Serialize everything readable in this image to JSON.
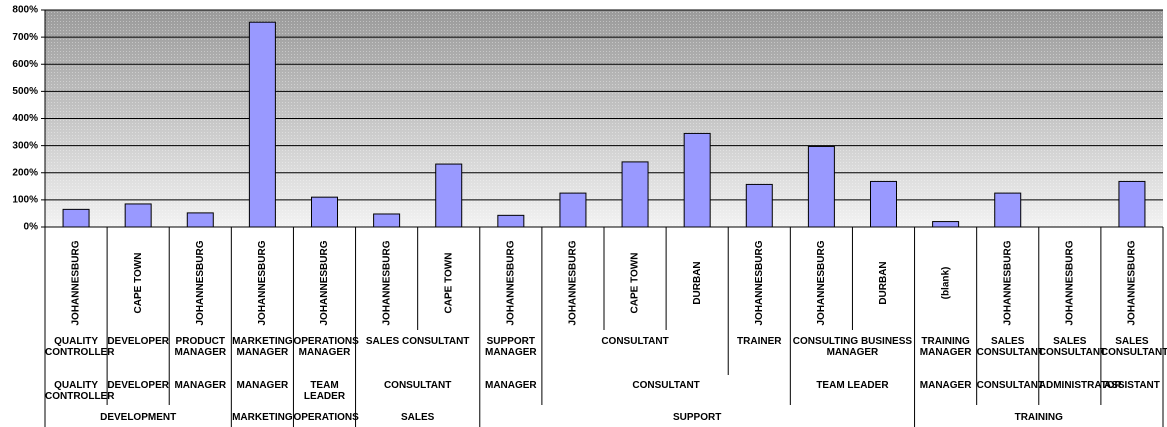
{
  "chart_data": {
    "type": "bar",
    "categories": [
      "JOHANNESBURG",
      "CAPE TOWN",
      "JOHANNESBURG",
      "JOHANNESBURG",
      "JOHANNESBURG",
      "JOHANNESBURG",
      "CAPE TOWN",
      "JOHANNESBURG",
      "JOHANNESBURG",
      "CAPE TOWN",
      "DURBAN",
      "JOHANNESBURG",
      "JOHANNESBURG",
      "DURBAN",
      "(blank)",
      "JOHANNESBURG",
      "JOHANNESBURG",
      "JOHANNESBURG"
    ],
    "category_levels": [
      [
        "QUALITY CONTROLLER",
        "DEVELOPER",
        "PRODUCT MANAGER",
        "MARKETING MANAGER",
        "OPERATIONS MANAGER",
        "SALES CONSULTANT",
        null,
        "SUPPORT MANAGER",
        "CONSULTANT",
        null,
        null,
        "TRAINER",
        "CONSULTING BUSINESS MANAGER",
        null,
        "TRAINING MANAGER",
        "SALES CONSULTANT",
        "SALES CONSULTANT",
        "SALES CONSULTANT"
      ],
      [
        "QUALITY CONTROLLER",
        "DEVELOPER",
        "MANAGER",
        "MANAGER",
        "TEAM LEADER",
        "CONSULTANT",
        null,
        "MANAGER",
        "CONSULTANT",
        null,
        null,
        null,
        "TEAM LEADER",
        null,
        "MANAGER",
        "CONSULTANT",
        "ADMINISTRATOR",
        "ASSISTANT"
      ],
      [
        "DEVELOPMENT",
        null,
        null,
        "MARKETING",
        "OPERATIONS",
        "SALES",
        null,
        "SUPPORT",
        null,
        null,
        null,
        null,
        null,
        null,
        "TRAINING",
        null,
        null,
        null
      ]
    ],
    "values": [
      65,
      85,
      52,
      755,
      110,
      48,
      232,
      43,
      125,
      240,
      345,
      157,
      297,
      168,
      20,
      125,
      0,
      168
    ],
    "color": "#9999ff",
    "ylim": [
      0,
      800
    ],
    "yticks": [
      {
        "value": 0,
        "label": "0%"
      },
      {
        "value": 100,
        "label": "100%"
      },
      {
        "value": 200,
        "label": "200%"
      },
      {
        "value": 300,
        "label": "300%"
      },
      {
        "value": 400,
        "label": "400%"
      },
      {
        "value": 500,
        "label": "500%"
      },
      {
        "value": 600,
        "label": "600%"
      },
      {
        "value": 700,
        "label": "700%"
      },
      {
        "value": 800,
        "label": "800%"
      }
    ],
    "grid": true
  }
}
